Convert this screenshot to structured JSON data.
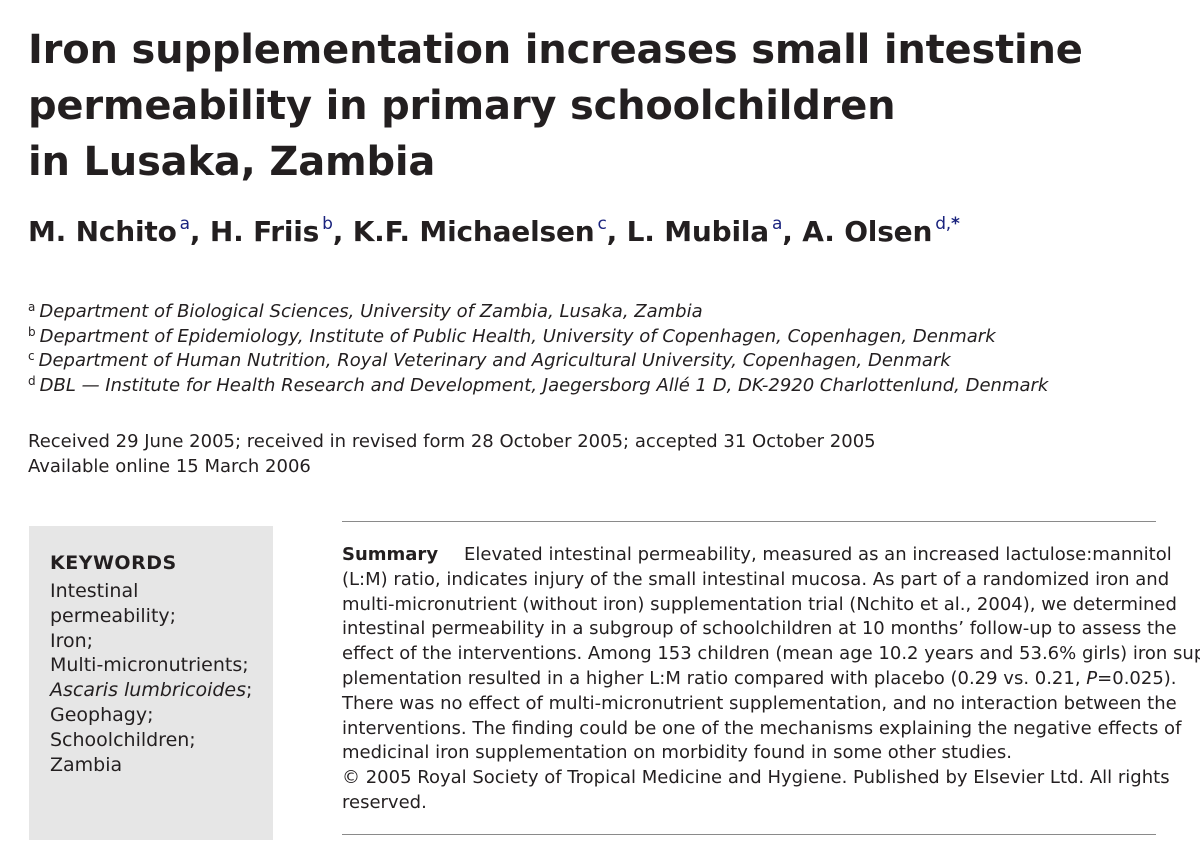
{
  "title_lines": [
    "Iron supplementation increases small intestine",
    "permeability in primary schoolchildren",
    "in Lusaka, Zambia"
  ],
  "authors": [
    {
      "name": "M. Nchito",
      "sup": "a",
      "sep": ", "
    },
    {
      "name": "H. Friis",
      "sup": "b",
      "sep": ", "
    },
    {
      "name": "K.F. Michaelsen",
      "sup": "c",
      "sep": ", "
    },
    {
      "name": "L. Mubila",
      "sup": "a",
      "sep": ", "
    },
    {
      "name": "A. Olsen",
      "sup": "d,",
      "corresponding": "*",
      "sep": ""
    }
  ],
  "affiliations": [
    {
      "sup": "a",
      "text": "Department of Biological Sciences, University of Zambia, Lusaka, Zambia"
    },
    {
      "sup": "b",
      "text": "Department of Epidemiology, Institute of Public Health, University of Copenhagen, Copenhagen, Denmark"
    },
    {
      "sup": "c",
      "text": "Department of Human Nutrition, Royal Veterinary and Agricultural University, Copenhagen, Denmark"
    },
    {
      "sup": "d",
      "text": "DBL — Institute for Health Research and Development, Jaegersborg Allé 1 D, DK-2920 Charlottenlund, Denmark"
    }
  ],
  "dates": {
    "received": "Received 29 June 2005; received in revised form 28 October 2005; accepted 31 October 2005",
    "online": "Available online 15 March 2006"
  },
  "keywords": {
    "heading": "KEYWORDS",
    "items": [
      "Intestinal",
      "permeability;",
      "Iron;",
      "Multi-micronutrients;",
      "Ascaris lumbricoides",
      "Geophagy;",
      "Schoolchildren;",
      "Zambia"
    ],
    "ascaris_suffix": ";"
  },
  "summary": {
    "label": "Summary",
    "lines": [
      "Elevated intestinal permeability, measured as an increased lactulose:mannitol",
      "(L:M) ratio, indicates injury of the small intestinal mucosa. As part of a randomized iron and",
      "multi-micronutrient (without iron) supplementation trial (Nchito et al., 2004), we determined",
      "intestinal permeability in a subgroup of schoolchildren at 10 months’ follow-up to assess the",
      "effect of the interventions. Among 153 children (mean age 10.2 years and 53.6% girls) iron sup-",
      "plementation resulted in a higher L:M ratio compared with placebo (0.29 vs. 0.21, ",
      "There was no effect of multi-micronutrient supplementation, and no interaction between the",
      "interventions. The finding could be one of the mechanisms explaining the negative effects of",
      "medicinal iron supplementation on morbidity found in some other studies."
    ],
    "p_label": "P",
    "p_value": "=0.025).",
    "copyright_lines": [
      "© 2005 Royal Society of Tropical Medicine and Hygiene. Published by Elsevier Ltd. All rights",
      "reserved."
    ]
  }
}
